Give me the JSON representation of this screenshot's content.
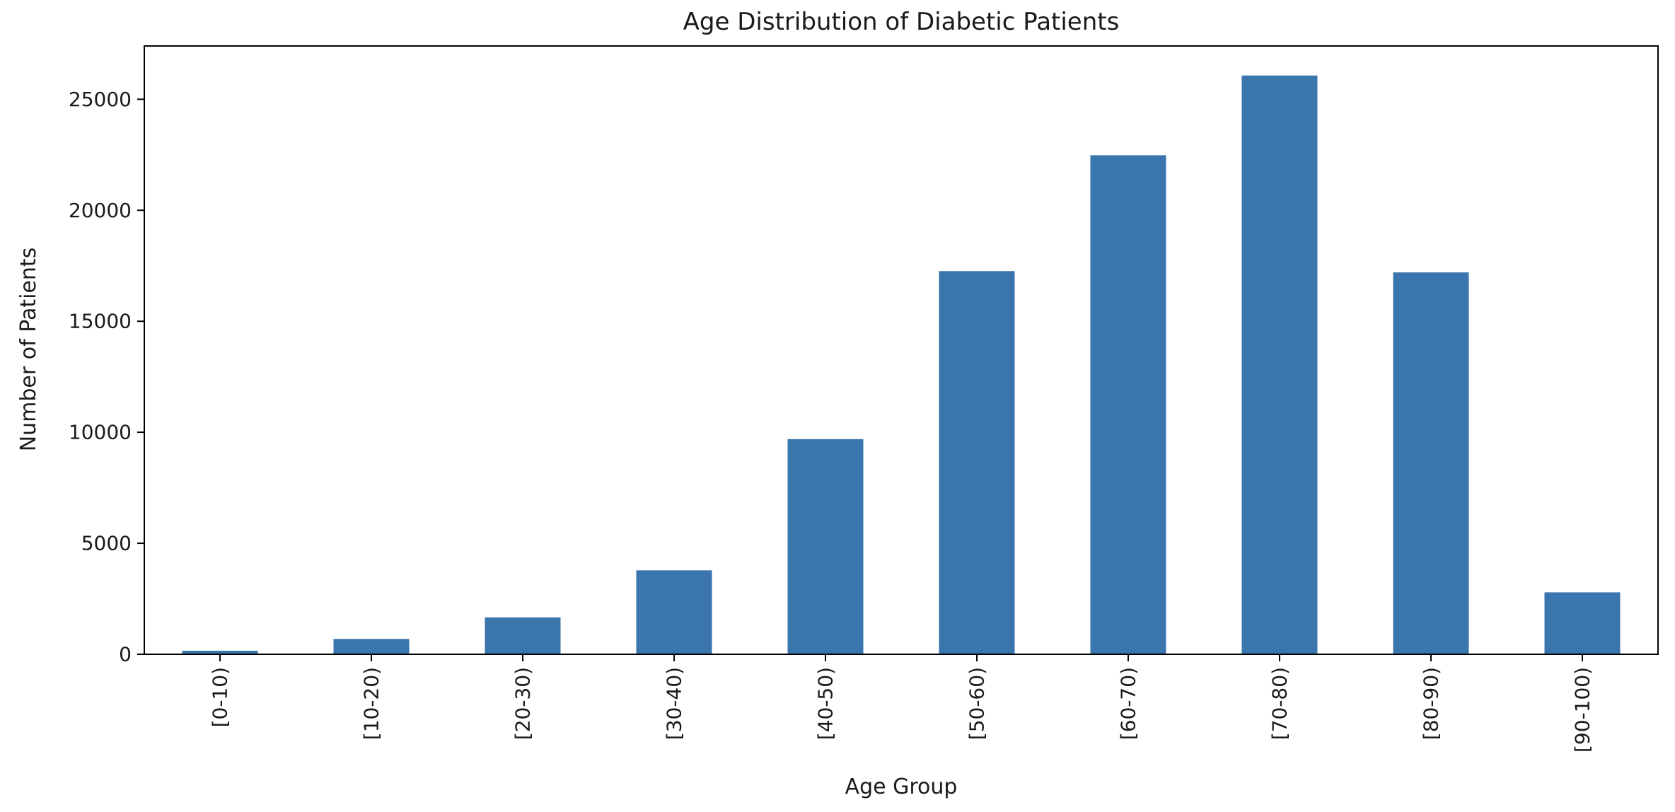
{
  "chart_data": {
    "type": "bar",
    "title": "Age Distribution of Diabetic Patients",
    "xlabel": "Age Group",
    "ylabel": "Number of Patients",
    "categories": [
      "[0-10)",
      "[10-20)",
      "[20-30)",
      "[30-40)",
      "[40-50)",
      "[50-60)",
      "[60-70)",
      "[70-80)",
      "[80-90)",
      "[90-100)"
    ],
    "values": [
      160,
      690,
      1660,
      3780,
      9690,
      17260,
      22480,
      26070,
      17200,
      2790
    ],
    "ylim": [
      0,
      27400
    ],
    "yticks": [
      0,
      5000,
      10000,
      15000,
      20000,
      25000
    ],
    "grid": false,
    "bar_color": "#3a75ad"
  }
}
